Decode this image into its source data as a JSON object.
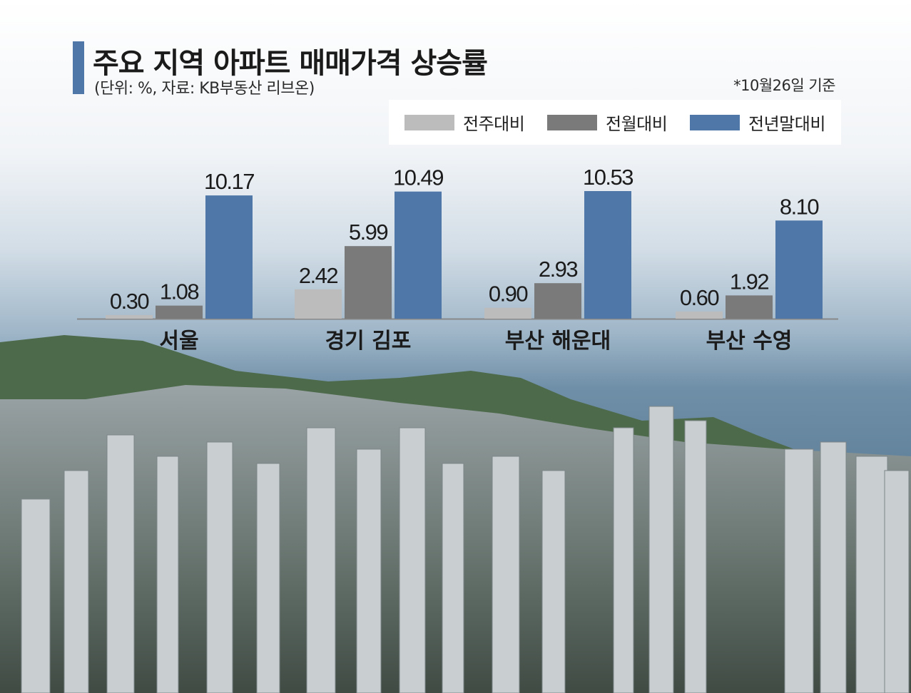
{
  "title": "주요 지역 아파트 매매가격 상승률",
  "subtitle": "(단위: %, 자료: KB부동산 리브온)",
  "note": "*10월26일 기준",
  "colors": {
    "accent": "#4f77a8",
    "series": [
      "#bcbcbc",
      "#7a7a7a",
      "#4f77a8"
    ]
  },
  "legend": [
    "전주대비",
    "전월대비",
    "전년말대비"
  ],
  "chart_data": {
    "type": "bar",
    "categories": [
      "서울",
      "경기 김포",
      "부산 해운대",
      "부산 수영"
    ],
    "series": [
      {
        "name": "전주대비",
        "values": [
          0.3,
          2.42,
          0.9,
          0.6
        ]
      },
      {
        "name": "전월대비",
        "values": [
          1.08,
          5.99,
          2.93,
          1.92
        ]
      },
      {
        "name": "전년말대비",
        "values": [
          10.17,
          10.49,
          10.53,
          8.1
        ]
      }
    ],
    "value_labels": [
      [
        "0.30",
        "2.42",
        "0.90",
        "0.60"
      ],
      [
        "1.08",
        "5.99",
        "2.93",
        "1.92"
      ],
      [
        "10.17",
        "10.49",
        "10.53",
        "8.10"
      ]
    ],
    "title": "주요 지역 아파트 매매가격 상승률",
    "grid": false,
    "legend_position": "top-right"
  }
}
